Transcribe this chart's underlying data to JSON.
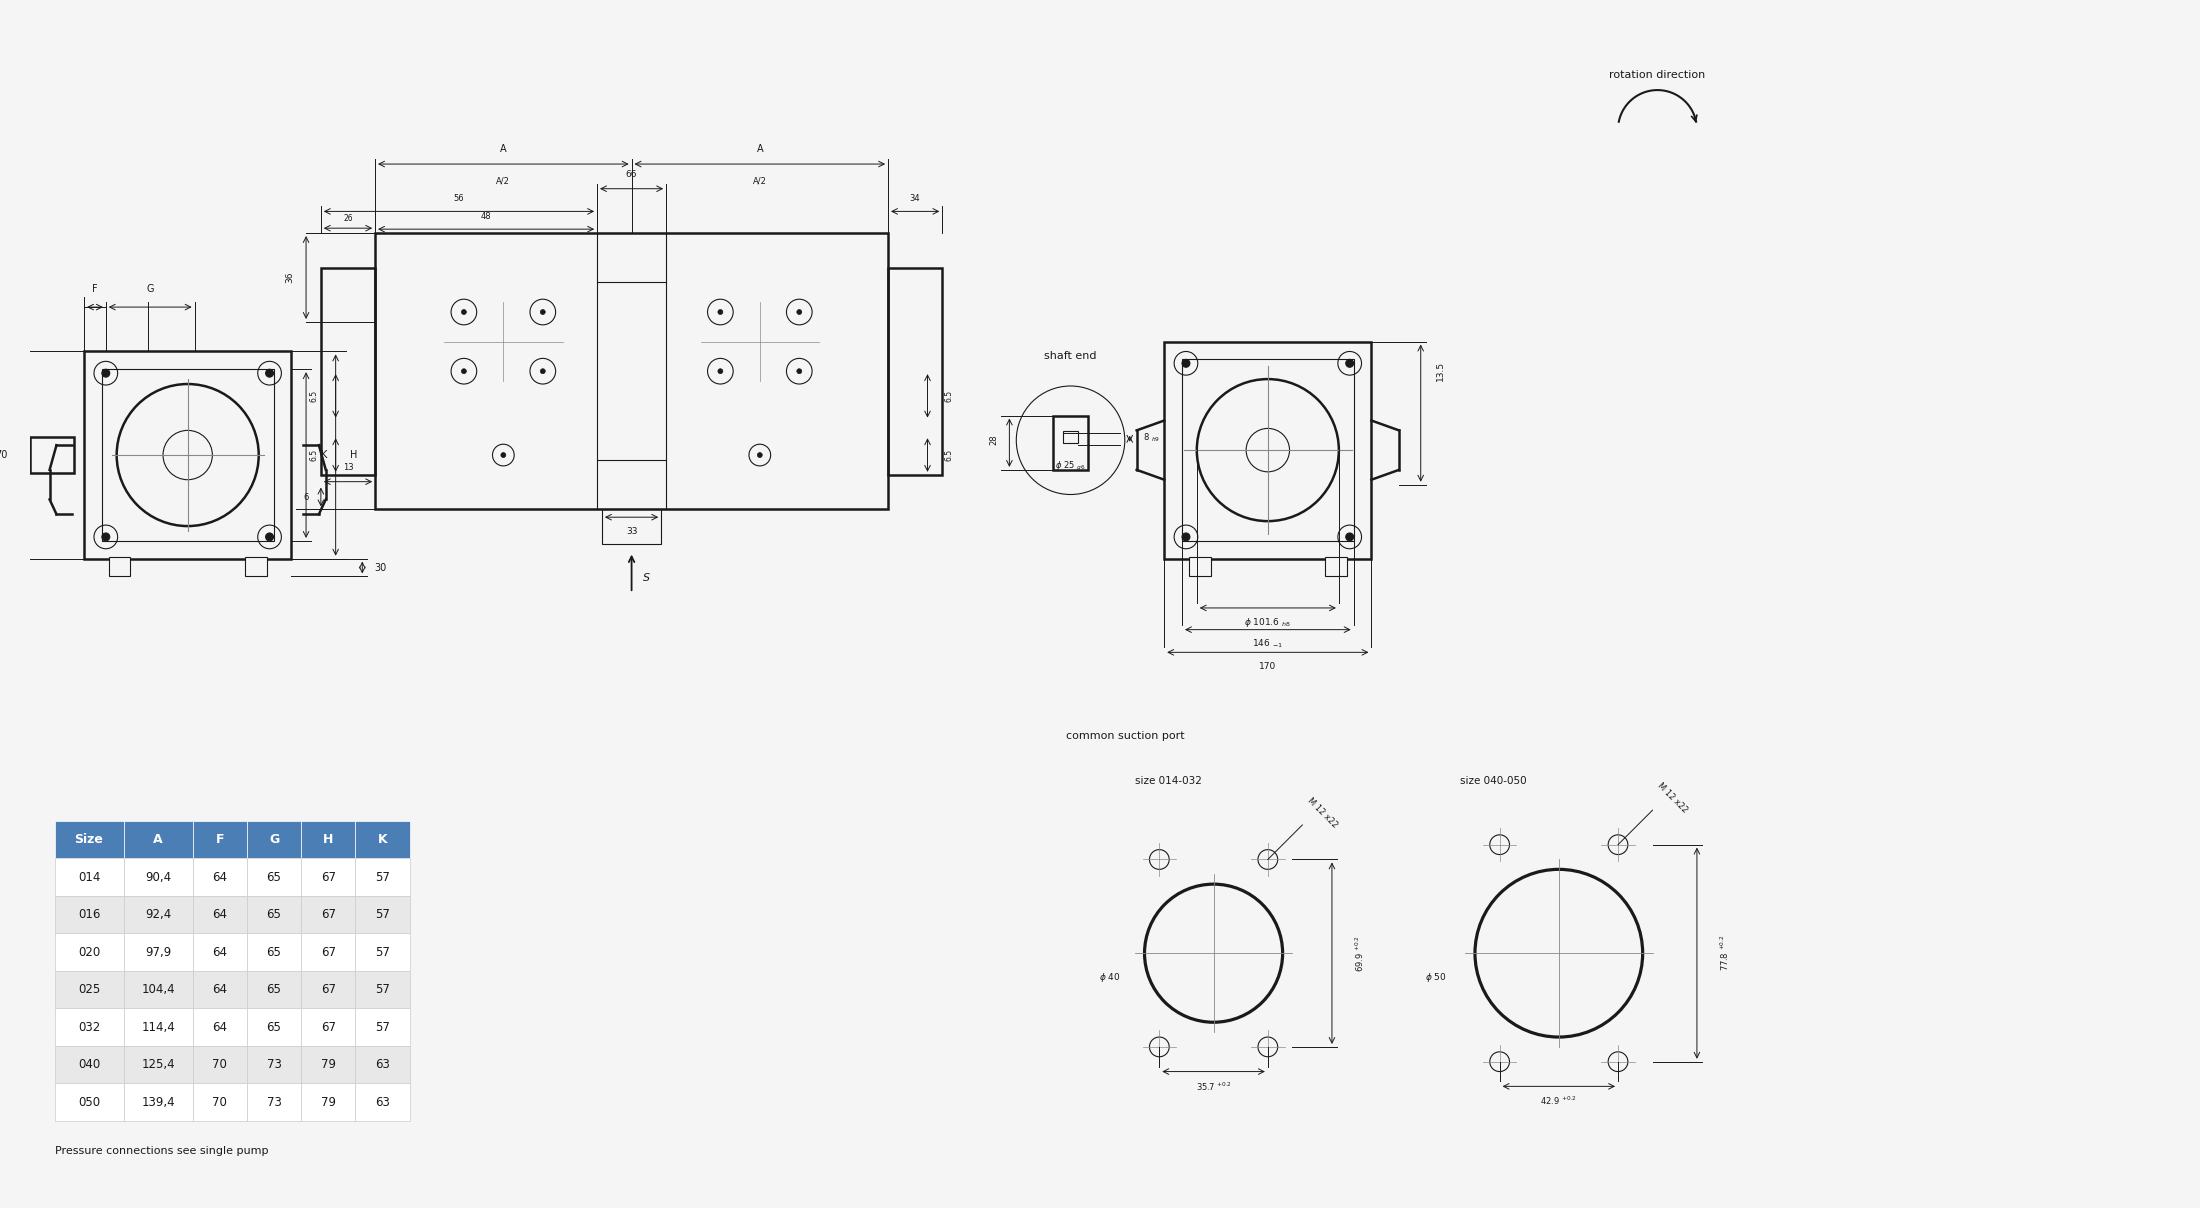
{
  "bg_color": "#f5f5f5",
  "line_color": "#1a1a1a",
  "table_header_color": "#4a7eb5",
  "table_header_text_color": "#ffffff",
  "table_row_alt_color": "#e8e8e8",
  "table_row_color": "#ffffff",
  "table_text_color": "#1a1a1a",
  "table_headers": [
    "Size",
    "A",
    "F",
    "G",
    "H",
    "K"
  ],
  "table_data": [
    [
      "014",
      "90,4",
      "64",
      "65",
      "67",
      "57"
    ],
    [
      "016",
      "92,4",
      "64",
      "65",
      "67",
      "57"
    ],
    [
      "020",
      "97,9",
      "64",
      "65",
      "67",
      "57"
    ],
    [
      "025",
      "104,4",
      "64",
      "65",
      "67",
      "57"
    ],
    [
      "032",
      "114,4",
      "64",
      "65",
      "67",
      "57"
    ],
    [
      "040",
      "125,4",
      "70",
      "73",
      "79",
      "63"
    ],
    [
      "050",
      "139,4",
      "70",
      "73",
      "79",
      "63"
    ]
  ],
  "footer_text": "Pressure connections see single pump",
  "common_suction_label": "common suction port",
  "size_014_032_label": "size 014-032",
  "size_040_050_label": "size 040-050",
  "rotation_label": "rotation direction",
  "shaft_end_label": "shaft end"
}
